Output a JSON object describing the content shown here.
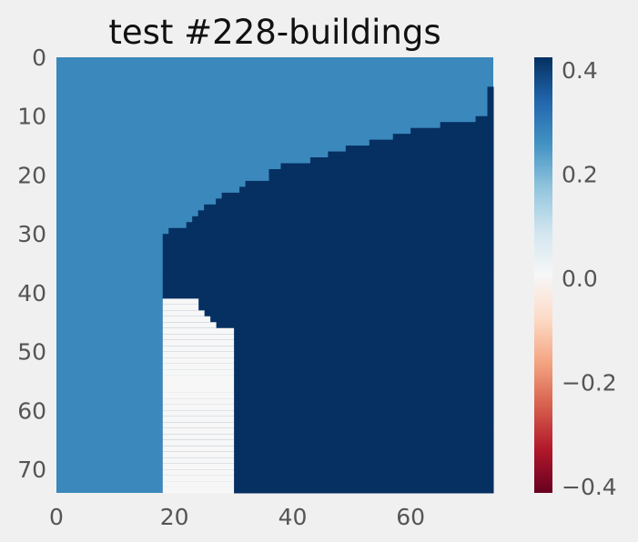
{
  "chart_data": {
    "type": "heatmap",
    "title": "test #228-buildings",
    "xlabel": "",
    "ylabel": "",
    "rows": 74,
    "cols": 74,
    "x_ticks": [
      0,
      20,
      40,
      60
    ],
    "y_ticks": [
      0,
      10,
      20,
      30,
      40,
      50,
      60,
      70
    ],
    "x_tick_labels": [
      "0",
      "20",
      "40",
      "60"
    ],
    "y_tick_labels": [
      "0",
      "10",
      "20",
      "30",
      "40",
      "50",
      "60",
      "70"
    ],
    "colorbar": {
      "vmin": -0.4,
      "vmax": 0.4,
      "ticks": [
        -0.4,
        -0.2,
        0.0,
        0.2,
        0.4
      ],
      "tick_labels": [
        "−0.4",
        "−0.2",
        "0.0",
        "0.2",
        "0.4"
      ],
      "colormap": "RdBu",
      "colormap_stops": [
        "#67001f",
        "#b2182b",
        "#d6604d",
        "#f4a582",
        "#fddbc7",
        "#f7f7f7",
        "#d1e5f0",
        "#92c5de",
        "#4393c3",
        "#2166ac",
        "#053061"
      ]
    },
    "grid": false,
    "values_legend": {
      "background": 0.26,
      "building": 0.4,
      "footprint": 0.0
    },
    "boundary_start_col_by_row": [
      [
        0,
        74
      ],
      [
        9,
        73
      ],
      [
        10,
        71
      ],
      [
        11,
        65
      ],
      [
        12,
        60
      ],
      [
        13,
        57
      ],
      [
        14,
        53
      ],
      [
        15,
        49
      ],
      [
        16,
        46
      ],
      [
        17,
        43
      ],
      [
        18,
        38
      ],
      [
        19,
        36
      ],
      [
        20,
        36
      ],
      [
        21,
        32
      ],
      [
        22,
        31
      ],
      [
        23,
        28
      ],
      [
        24,
        27
      ],
      [
        25,
        25
      ],
      [
        26,
        24
      ],
      [
        27,
        23
      ],
      [
        28,
        22
      ],
      [
        29,
        19
      ],
      [
        30,
        18
      ],
      [
        33,
        18
      ],
      [
        37,
        18
      ],
      [
        74,
        18
      ]
    ],
    "footprint_rows": [
      41,
      73
    ],
    "footprint_cols_by_row": [
      [
        41,
        18,
        24
      ],
      [
        42,
        18,
        24
      ],
      [
        43,
        18,
        25
      ],
      [
        44,
        18,
        26
      ],
      [
        45,
        18,
        27
      ],
      [
        46,
        18,
        30
      ],
      [
        73,
        18,
        30
      ]
    ]
  }
}
